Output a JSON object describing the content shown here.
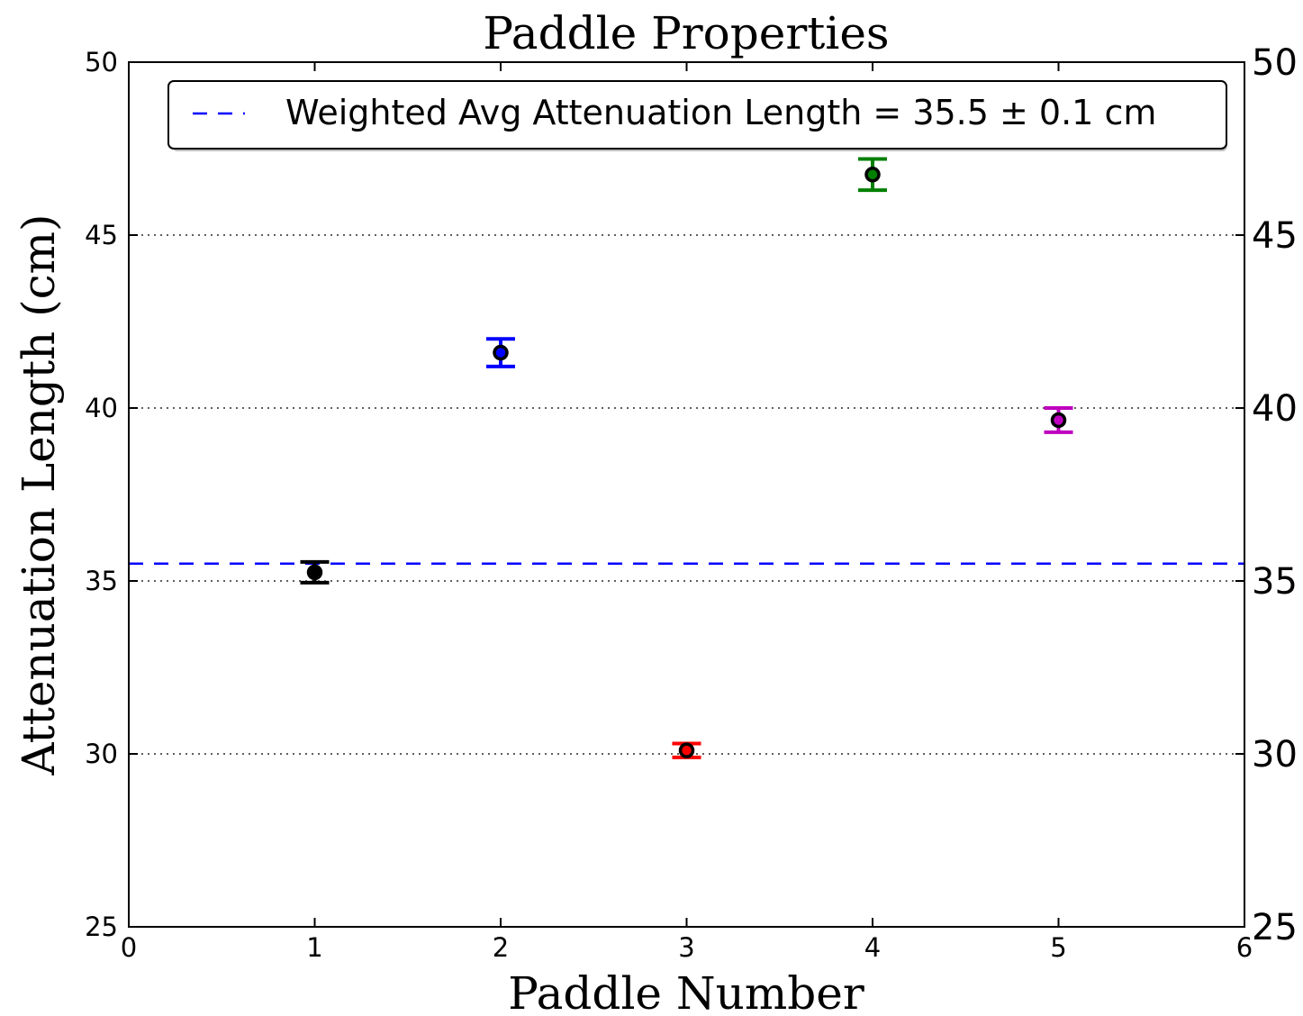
{
  "chart_data": {
    "type": "scatter",
    "title": "Paddle Properties",
    "xlabel": "Paddle Number",
    "ylabel": "Attenuation Length (cm)",
    "xlim": [
      0,
      6
    ],
    "ylim": [
      25,
      50
    ],
    "x_ticks": [
      "0",
      "1",
      "2",
      "3",
      "4",
      "5",
      "6"
    ],
    "y_ticks_left": [
      "25",
      "30",
      "35",
      "40",
      "45",
      "50"
    ],
    "y_ticks_right": [
      "25",
      "30",
      "35",
      "40",
      "45",
      "50"
    ],
    "grid": "horizontal-dotted",
    "legend_position": "top",
    "points": [
      {
        "x": 1,
        "y": 35.25,
        "err": 0.3,
        "color": "#000000"
      },
      {
        "x": 2,
        "y": 41.6,
        "err": 0.4,
        "color": "#0000ff"
      },
      {
        "x": 3,
        "y": 30.1,
        "err": 0.2,
        "color": "#ff0000"
      },
      {
        "x": 4,
        "y": 46.75,
        "err": 0.45,
        "color": "#007f00"
      },
      {
        "x": 5,
        "y": 39.65,
        "err": 0.35,
        "color": "#bf00bf"
      }
    ],
    "reference_line": {
      "y": 35.5,
      "color": "#0000ff",
      "style": "dashed",
      "label": "Weighted Avg Attenuation Length = 35.5 ± 0.1 cm"
    }
  }
}
